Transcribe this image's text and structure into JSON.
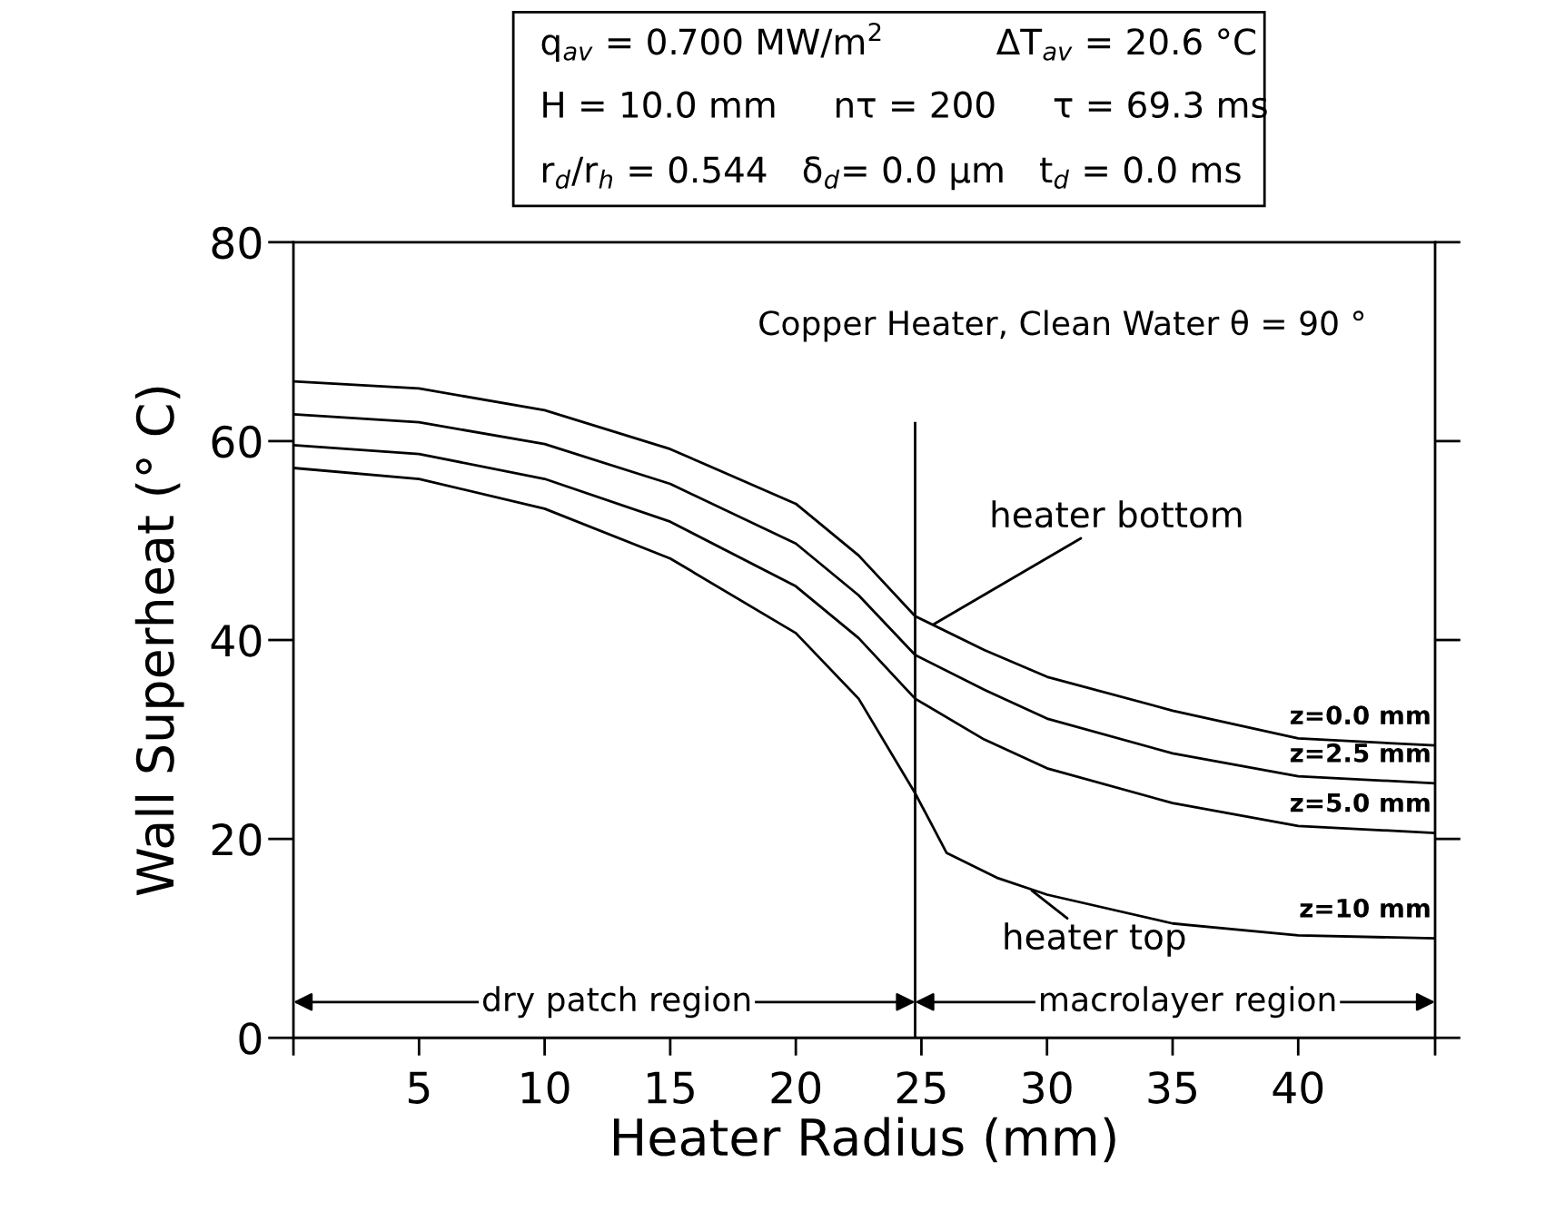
{
  "chart_data": {
    "type": "line",
    "xlabel": "Heater Radius (mm)",
    "ylabel": "Wall Superheat (° C)",
    "xlim": [
      0,
      45.45
    ],
    "ylim": [
      0,
      80
    ],
    "xticks": [
      {
        "value": 0,
        "label": null
      },
      5,
      10,
      15,
      20,
      25,
      30,
      35,
      40,
      {
        "value": 45.45,
        "label": null
      }
    ],
    "yticks": [
      0,
      20,
      40,
      60,
      80
    ],
    "marker": "none",
    "line_style": "solid",
    "series": [
      {
        "color": "#000000",
        "x": [
          0,
          5,
          10,
          15,
          20,
          22.5,
          24.75,
          27.5,
          30,
          35,
          40,
          45.45
        ],
        "values": [
          66.0,
          65.3,
          63.1,
          59.2,
          53.7,
          48.5,
          42.4,
          39.0,
          36.3,
          32.9,
          30.1,
          29.4
        ]
      },
      {
        "color": "#000000",
        "x": [
          0,
          5,
          10,
          15,
          20,
          22.5,
          24.75,
          27.5,
          30,
          35,
          40,
          45.45
        ],
        "values": [
          62.7,
          61.9,
          59.7,
          55.7,
          49.7,
          44.5,
          38.5,
          35.0,
          32.1,
          28.6,
          26.3,
          25.6
        ]
      },
      {
        "color": "#000000",
        "x": [
          0,
          5,
          10,
          15,
          20,
          22.5,
          24.75,
          27.5,
          30,
          35,
          40,
          45.45
        ],
        "values": [
          59.6,
          58.7,
          56.2,
          51.9,
          45.4,
          40.2,
          34.1,
          30.0,
          27.1,
          23.6,
          21.3,
          20.6
        ]
      },
      {
        "color": "#000000",
        "x": [
          0,
          5,
          10,
          15,
          20,
          22.5,
          24.75,
          26,
          28,
          30,
          35,
          40,
          45.45
        ],
        "values": [
          57.3,
          56.2,
          53.2,
          48.2,
          40.7,
          34.1,
          24.6,
          18.6,
          16.1,
          14.4,
          11.5,
          10.3,
          10.0
        ]
      }
    ],
    "ref_lines": [
      {
        "axis": "x",
        "value": 24.75,
        "color": "#000000"
      }
    ],
    "annotations": [
      "q$_{av}$ = 0.700 MW/m$^{2}$          ΔT$_{av}$ = 20.6 °C",
      "H = 10.0 mm     nτ = 200     τ = 69.3 ms",
      "r$_{d}$/r$_{h}$ = 0.544   δ$_{d}$= 0.0 μm   t$_{d}$ = 0.0 ms",
      "Copper Heater, Clean Water θ = 90 °",
      "z=0.0 mm",
      "z=2.5 mm",
      "z=5.0 mm",
      "z=10 mm",
      "dry patch region",
      "macrolayer region",
      {
        "text": "heater bottom",
        "x": 25.5,
        "y": 41.6
      },
      {
        "text": "heater top",
        "x": 29.4,
        "y": 14.8
      }
    ]
  }
}
